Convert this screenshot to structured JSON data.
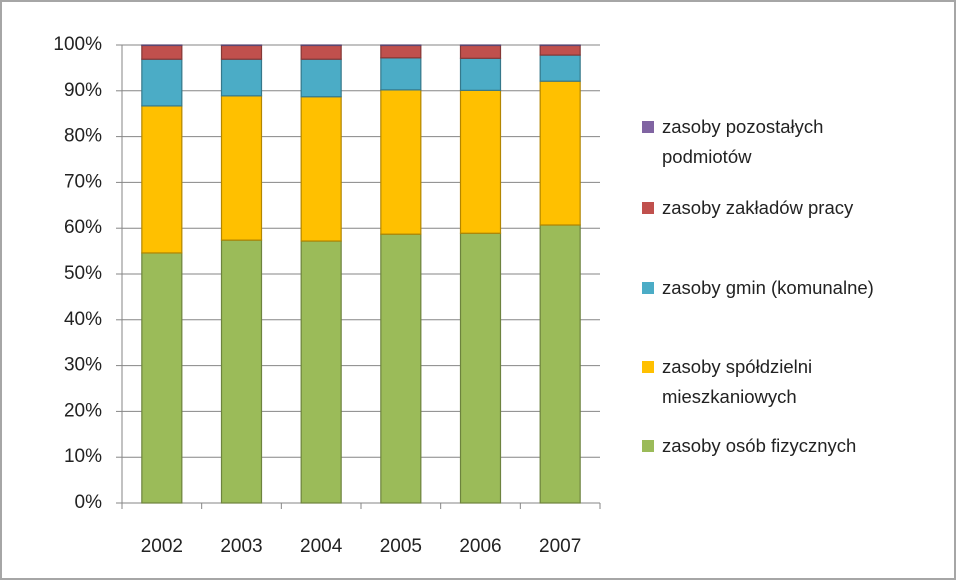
{
  "chart_data": {
    "type": "stacked_bar_100",
    "categories": [
      "2002",
      "2003",
      "2004",
      "2005",
      "2006",
      "2007"
    ],
    "series": [
      {
        "name": "zasoby osób fizycznych",
        "color": "#9bbb59",
        "values": [
          54.6,
          57.4,
          57.2,
          58.7,
          58.9,
          60.7
        ]
      },
      {
        "name": "zasoby spółdzielni mieszkaniowych",
        "color": "#ffc000",
        "values": [
          32.1,
          31.5,
          31.5,
          31.5,
          31.2,
          31.4
        ]
      },
      {
        "name": "zasoby gmin (komunalne)",
        "color": "#4bacc6",
        "values": [
          10.2,
          8.0,
          8.2,
          7.0,
          7.0,
          5.7
        ]
      },
      {
        "name": "zasoby zakładów pracy",
        "color": "#c0504d",
        "values": [
          3.0,
          3.0,
          3.0,
          2.7,
          2.8,
          2.1
        ]
      },
      {
        "name": "zasoby pozostałych podmiotów",
        "color": "#8064a2",
        "values": [
          0.1,
          0.1,
          0.1,
          0.1,
          0.1,
          0.1
        ]
      }
    ],
    "ylim": [
      0,
      100
    ],
    "yticks": [
      {
        "value": 0,
        "label": "0%"
      },
      {
        "value": 10,
        "label": "10%"
      },
      {
        "value": 20,
        "label": "20%"
      },
      {
        "value": 30,
        "label": "30%"
      },
      {
        "value": 40,
        "label": "40%"
      },
      {
        "value": 50,
        "label": "50%"
      },
      {
        "value": 60,
        "label": "60%"
      },
      {
        "value": 70,
        "label": "70%"
      },
      {
        "value": 80,
        "label": "80%"
      },
      {
        "value": 90,
        "label": "90%"
      },
      {
        "value": 100,
        "label": "100%"
      }
    ],
    "grid": true,
    "legend": "right"
  }
}
